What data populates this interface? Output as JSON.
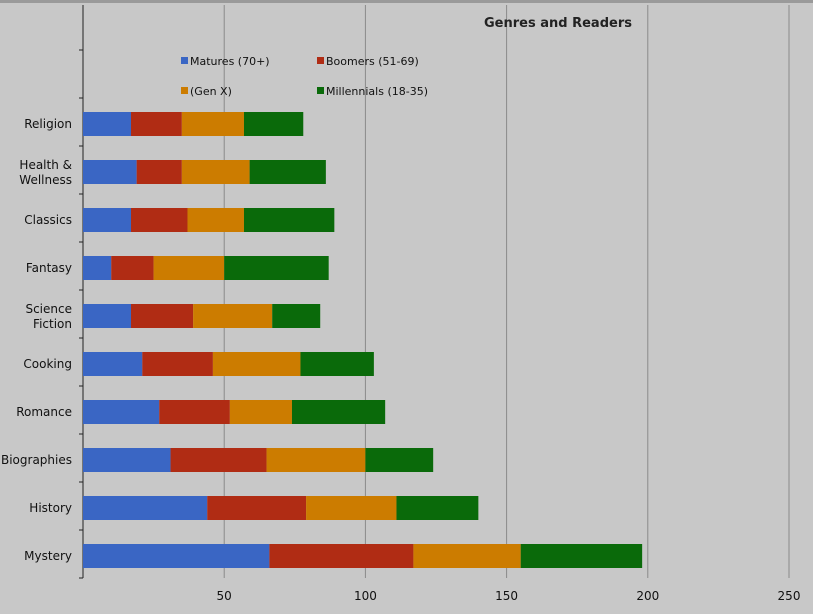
{
  "chart_data": {
    "type": "bar",
    "orientation": "horizontal",
    "stacked": true,
    "title": "Genres and Readers",
    "categories": [
      [
        "Religion"
      ],
      [
        "Health &",
        "Wellness"
      ],
      [
        "Classics"
      ],
      [
        "Fantasy"
      ],
      [
        "Science",
        "Fiction"
      ],
      [
        "Cooking"
      ],
      [
        "Romance"
      ],
      [
        "Biographies"
      ],
      [
        "History"
      ],
      [
        "Mystery"
      ]
    ],
    "series": [
      {
        "name": "Matures (70+)",
        "color": "#3a66c4",
        "values": [
          17,
          19,
          17,
          10,
          17,
          21,
          27,
          31,
          44,
          66
        ]
      },
      {
        "name": "Boomers (51-69)",
        "color": "#b02c14",
        "values": [
          18,
          16,
          20,
          15,
          22,
          25,
          25,
          34,
          35,
          51
        ]
      },
      {
        "name": "(Gen X)",
        "color": "#cc7c00",
        "values": [
          22,
          24,
          20,
          25,
          28,
          31,
          22,
          35,
          32,
          38
        ]
      },
      {
        "name": "Millennials (18-35)",
        "color": "#0a6a0a",
        "values": [
          21,
          27,
          32,
          37,
          17,
          26,
          33,
          24,
          29,
          43
        ]
      }
    ],
    "xlim": [
      0,
      250
    ],
    "xticks": [
      50,
      100,
      150,
      200,
      250
    ],
    "grid": true,
    "legend": "top"
  }
}
